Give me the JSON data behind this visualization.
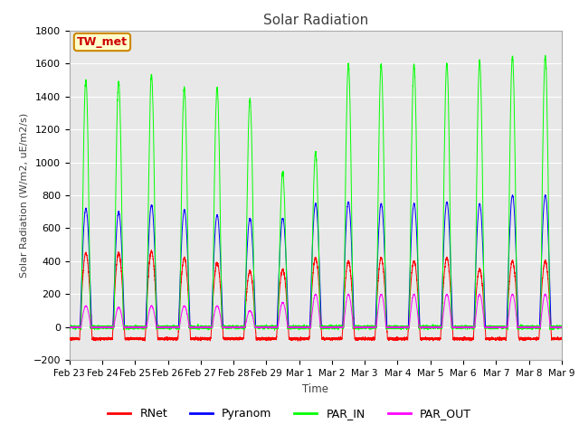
{
  "title": "Solar Radiation",
  "ylabel": "Solar Radiation (W/m2, uE/m2/s)",
  "xlabel": "Time",
  "ylim": [
    -200,
    1800
  ],
  "yticks": [
    -200,
    0,
    200,
    400,
    600,
    800,
    1000,
    1200,
    1400,
    1600,
    1800
  ],
  "fig_bg_color": "#ffffff",
  "plot_bg_color": "#e8e8e8",
  "grid_color": "#ffffff",
  "annotation_text": "TW_met",
  "annotation_bg": "#ffffcc",
  "annotation_border": "#cc8800",
  "annotation_text_color": "#cc0000",
  "series_colors": {
    "RNet": "#ff0000",
    "Pyranom": "#0000ff",
    "PAR_IN": "#00ff00",
    "PAR_OUT": "#ff00ff"
  },
  "legend_entries": [
    "RNet",
    "Pyranom",
    "PAR_IN",
    "PAR_OUT"
  ],
  "legend_colors": [
    "#ff0000",
    "#0000ff",
    "#00ff00",
    "#ff00ff"
  ],
  "num_days": 15,
  "daily_peaks": {
    "RNet": [
      450,
      450,
      460,
      420,
      390,
      340,
      350,
      420,
      400,
      420,
      400,
      420,
      350,
      400,
      400
    ],
    "Pyranom": [
      720,
      700,
      740,
      710,
      680,
      660,
      660,
      750,
      760,
      750,
      750,
      760,
      750,
      800,
      800
    ],
    "PAR_IN": [
      1500,
      1490,
      1530,
      1450,
      1450,
      1380,
      940,
      1060,
      1590,
      1590,
      1590,
      1600,
      1610,
      1640,
      1640
    ],
    "PAR_OUT": [
      130,
      120,
      130,
      130,
      130,
      100,
      150,
      200,
      200,
      200,
      200,
      200,
      200,
      200,
      200
    ]
  },
  "night_values": {
    "RNet": -70,
    "Pyranom": 0,
    "PAR_IN": 0,
    "PAR_OUT": 0
  },
  "day_frac": {
    "RNet": 0.38,
    "Pyranom": 0.35,
    "PAR_IN": 0.28,
    "PAR_OUT": 0.3
  },
  "ticklabels": [
    "Feb 23",
    "Feb 24",
    "Feb 25",
    "Feb 26",
    "Feb 27",
    "Feb 28",
    "Feb 29",
    "Mar 1",
    "Mar 2",
    "Mar 3",
    "Mar 4",
    "Mar 5",
    "Mar 6",
    "Mar 7",
    "Mar 8",
    "Mar 9"
  ]
}
